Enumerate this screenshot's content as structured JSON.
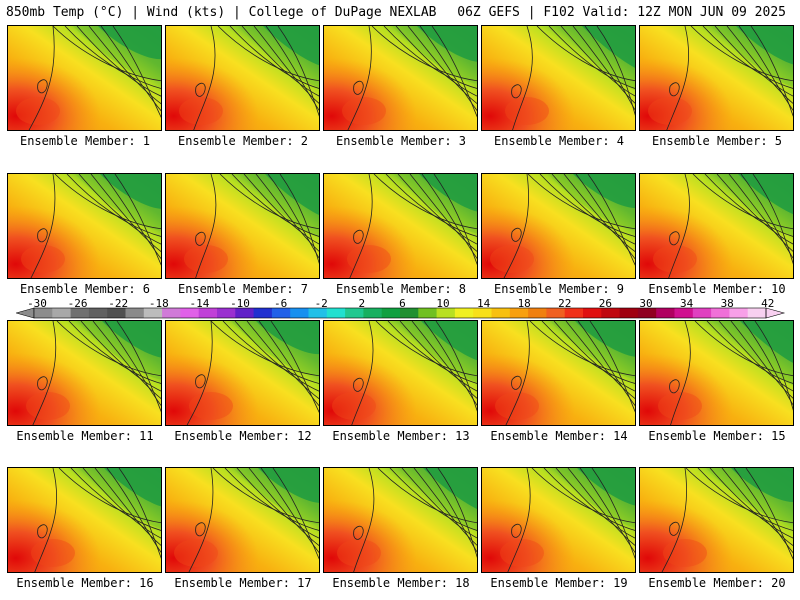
{
  "header": {
    "left": "850mb Temp (°C) | Wind (kts) | College of DuPage NEXLAB",
    "right": "06Z GEFS | F102 Valid: 12Z MON JUN 09 2025"
  },
  "panels": [
    {
      "label": "Ensemble Member: 1"
    },
    {
      "label": "Ensemble Member: 2"
    },
    {
      "label": "Ensemble Member: 3"
    },
    {
      "label": "Ensemble Member: 4"
    },
    {
      "label": "Ensemble Member: 5"
    },
    {
      "label": "Ensemble Member: 6"
    },
    {
      "label": "Ensemble Member: 7"
    },
    {
      "label": "Ensemble Member: 8"
    },
    {
      "label": "Ensemble Member: 9"
    },
    {
      "label": "Ensemble Member: 10"
    },
    {
      "label": "Ensemble Member: 11"
    },
    {
      "label": "Ensemble Member: 12"
    },
    {
      "label": "Ensemble Member: 13"
    },
    {
      "label": "Ensemble Member: 14"
    },
    {
      "label": "Ensemble Member: 15"
    },
    {
      "label": "Ensemble Member: 16"
    },
    {
      "label": "Ensemble Member: 17"
    },
    {
      "label": "Ensemble Member: 18"
    },
    {
      "label": "Ensemble Member: 19"
    },
    {
      "label": "Ensemble Member: 20"
    }
  ],
  "colorbar": {
    "ticks": [
      "-30",
      "-26",
      "-22",
      "-18",
      "-14",
      "-10",
      "-6",
      "-2",
      "2",
      "6",
      "10",
      "14",
      "18",
      "22",
      "26",
      "30",
      "34",
      "38",
      "42"
    ],
    "colors": [
      "#8c8c8c",
      "#a8a8a8",
      "#707070",
      "#606060",
      "#505050",
      "#8a8a8a",
      "#bcbcbc",
      "#d07ad8",
      "#e060e8",
      "#c040d8",
      "#9a30d0",
      "#6020c8",
      "#2030d0",
      "#2060e8",
      "#1890f0",
      "#20c0e8",
      "#20e0d0",
      "#20c890",
      "#18b060",
      "#10a040",
      "#209030",
      "#70c020",
      "#b8e020",
      "#f0f020",
      "#f8e018",
      "#f8c010",
      "#f8a010",
      "#f08010",
      "#f06020",
      "#f03018",
      "#e01010",
      "#c00810",
      "#a00010",
      "#900020",
      "#b00060",
      "#d01090",
      "#e040c0",
      "#f070d8",
      "#f8a0e8",
      "#f8d0f0"
    ]
  }
}
